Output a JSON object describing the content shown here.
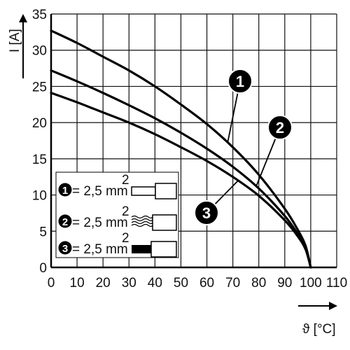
{
  "chart_data": {
    "type": "line",
    "xlabel": "ϑ [°C]",
    "ylabel": "I [A]",
    "xlim": [
      0,
      110
    ],
    "ylim": [
      0,
      35
    ],
    "x_ticks": [
      "0",
      "10",
      "20",
      "30",
      "40",
      "50",
      "60",
      "70",
      "80",
      "90",
      "100",
      "110"
    ],
    "y_ticks": [
      "0",
      "5",
      "10",
      "15",
      "20",
      "25",
      "30",
      "35"
    ],
    "grid": true,
    "series": [
      {
        "name": "1",
        "color": "#000000",
        "x": [
          0,
          10,
          20,
          30,
          40,
          50,
          60,
          70,
          80,
          90,
          95,
          98,
          100
        ],
        "y": [
          32.7,
          31.0,
          29.1,
          27.2,
          25.0,
          22.5,
          19.8,
          16.6,
          12.8,
          8.1,
          5.2,
          3.0,
          0
        ]
      },
      {
        "name": "2",
        "color": "#000000",
        "x": [
          0,
          10,
          20,
          30,
          40,
          50,
          60,
          70,
          80,
          90,
          95,
          98,
          100
        ],
        "y": [
          27.2,
          25.7,
          24.1,
          22.4,
          20.6,
          18.6,
          16.4,
          13.9,
          10.9,
          7.1,
          4.6,
          2.7,
          0
        ]
      },
      {
        "name": "3",
        "color": "#000000",
        "x": [
          0,
          10,
          20,
          30,
          40,
          50,
          60,
          70,
          80,
          90,
          95,
          98,
          100
        ],
        "y": [
          24.1,
          22.8,
          21.4,
          20.0,
          18.4,
          16.6,
          14.7,
          12.5,
          9.9,
          6.5,
          4.3,
          2.5,
          0
        ]
      }
    ],
    "legend_placement": "bottom-left",
    "legend": [
      {
        "number": "1",
        "text": "= 2,5 mm",
        "sup": "2",
        "icon": "ferrule-icon"
      },
      {
        "number": "2",
        "text": "= 2,5 mm",
        "sup": "2",
        "icon": "stranded-wire-icon"
      },
      {
        "number": "3",
        "text": "= 2,5 mm",
        "sup": "2",
        "icon": "solid-wire-ferrule-icon"
      }
    ],
    "callouts": [
      {
        "label": "1",
        "series": 0,
        "x": 68
      },
      {
        "label": "2",
        "series": 1,
        "x": 79
      },
      {
        "label": "3",
        "series": 2,
        "x": 72
      }
    ]
  }
}
